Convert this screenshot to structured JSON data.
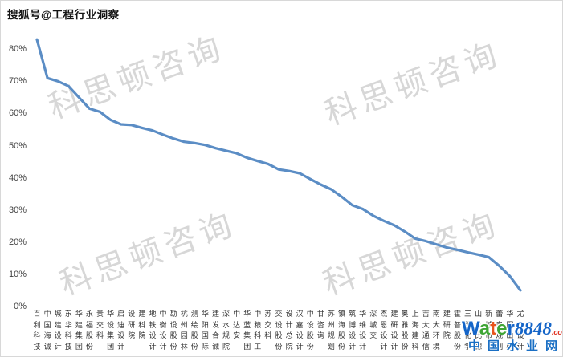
{
  "header": {
    "title": "搜狐号@工程行业洞察"
  },
  "watermark": {
    "text": "科思顿咨询"
  },
  "footer_brand": {
    "letters": [
      {
        "ch": "W",
        "color": "#1565c8"
      },
      {
        "ch": "a",
        "color": "#3fa535"
      },
      {
        "ch": "t",
        "color": "#e8541c"
      },
      {
        "ch": "e",
        "color": "#3fa535"
      },
      {
        "ch": "r",
        "color": "#1565c8"
      }
    ],
    "number": "8848",
    "suffix": ".com",
    "cn_text": "中国水业网"
  },
  "chart_data": {
    "type": "line",
    "title": "",
    "xlabel": "",
    "ylabel": "",
    "line_color": "#5b8dc5",
    "axis_color": "#bfbfbf",
    "grid": false,
    "legend": null,
    "y_ticks": [
      0,
      10,
      20,
      30,
      40,
      50,
      60,
      70,
      80
    ],
    "ylim": [
      0,
      85
    ],
    "categories": [
      "百利科技",
      "中国海诚",
      "城建设计",
      "东华科技",
      "华建集团",
      "永福股份",
      "贵交科",
      "华设集团",
      "启迪设计",
      "设研院",
      "建科院",
      "地铁设计",
      "中衡设计",
      "勘设股份",
      "杭州园林",
      "测绘股份",
      "华阳国际",
      "建发合诚",
      "深水规院",
      "中达安",
      "华蓝集团",
      "中粮科工",
      "苏交科",
      "交设股份",
      "设计总院",
      "汉嘉设计",
      "中设股份",
      "甘咨询",
      "苏州规划",
      "镇海股份",
      "筑博设计",
      "华维设计",
      "深城交",
      "杰恩设计",
      "建研设计",
      "奥雅股份",
      "上海建科",
      "吉大通信",
      "南大环境",
      "建研院",
      "霍普股份",
      "三维化学",
      "山水比德",
      "新城市",
      "蕾奥规划",
      "华图山鼎",
      "尤安设计"
    ],
    "values": [
      83,
      71,
      70,
      68.5,
      65,
      61.5,
      60.5,
      58,
      56.6,
      56.4,
      55.5,
      54.7,
      53.4,
      52.2,
      51.2,
      50.8,
      50.2,
      49.2,
      48.4,
      47.6,
      46.2,
      45.2,
      44.3,
      42.6,
      42.1,
      41.4,
      39.6,
      37.9,
      36.4,
      34.1,
      31.5,
      30.3,
      28.2,
      26.6,
      25.2,
      23.3,
      21.1,
      20.3,
      19.3,
      18.3,
      17.6,
      16.8,
      16.1,
      15.3,
      12.6,
      9.4,
      5
    ]
  }
}
